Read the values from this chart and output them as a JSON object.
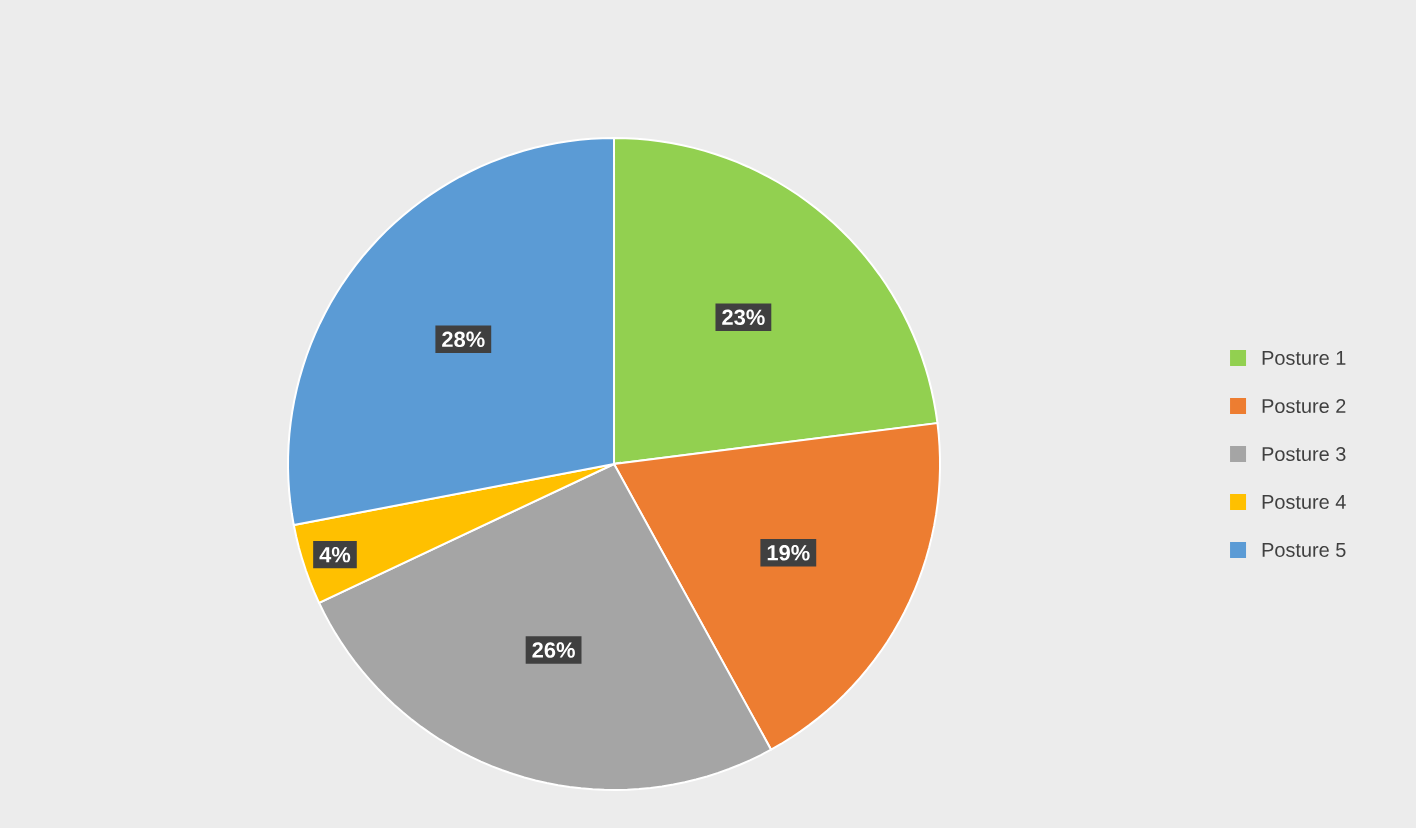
{
  "chart_data": {
    "type": "pie",
    "categories": [
      "Posture 1",
      "Posture 2",
      "Posture 3",
      "Posture 4",
      "Posture 5"
    ],
    "values": [
      23,
      19,
      26,
      4,
      28
    ],
    "value_labels": [
      "23%",
      "19%",
      "26%",
      "4%",
      "28%"
    ],
    "colors": [
      "#92d050",
      "#ed7d31",
      "#a5a5a5",
      "#ffc000",
      "#5b9bd5"
    ],
    "legend": "right"
  }
}
